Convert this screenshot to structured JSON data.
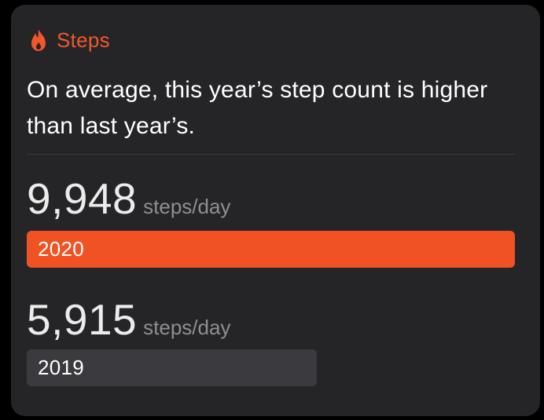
{
  "header": {
    "title": "Steps",
    "icon": "flame-icon",
    "accent_color": "#f2562b"
  },
  "headline": "On average, this year’s step count is higher than last year’s.",
  "comparisons": [
    {
      "value": "9,948",
      "unit": "steps/day",
      "year": "2020",
      "bar_color": "#f05224",
      "bar_fraction": 1.0
    },
    {
      "value": "5,915",
      "unit": "steps/day",
      "year": "2019",
      "bar_color": "#3b3b3f",
      "bar_fraction": 0.5946
    }
  ]
}
